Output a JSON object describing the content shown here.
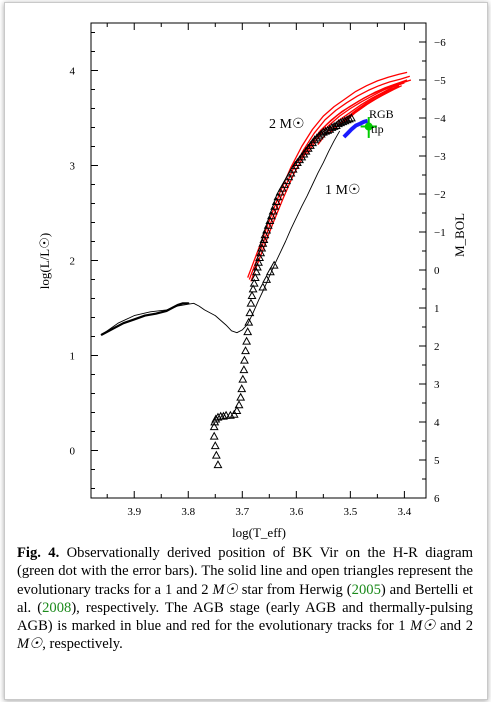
{
  "figure": {
    "caption_label": "Fig. 4.",
    "caption_text_1": "Observationally derived position of BK Vir on the H-R diagram (green dot with the error bars). The solid line and open triangles represent the evolutionary tracks for a 1 and 2 ",
    "caption_msun_1": "M☉",
    "caption_text_2": " star from Herwig (",
    "caption_ref_1": "2005",
    "caption_text_3": ") and Bertelli et al. (",
    "caption_ref_2": "2008",
    "caption_text_4": "), respectively. The AGB stage (early AGB and thermally-pulsing AGB) is marked in blue and red for the evolutionary tracks for 1 ",
    "caption_msun_2": "M☉",
    "caption_text_5": " and 2 ",
    "caption_msun_3": "M☉",
    "caption_text_6": ", respectively."
  },
  "chart_data": {
    "type": "scatter",
    "xlabel": "log(T_eff)",
    "ylabel_left": "log(L/L☉)",
    "ylabel_right": "M_BOL",
    "xlim": [
      3.98,
      3.36
    ],
    "ylim": [
      -0.5,
      4.5
    ],
    "right_ylim": [
      6,
      -6.5
    ],
    "x_ticks": [
      "3.9",
      "3.8",
      "3.7",
      "3.6",
      "3.5",
      "3.4"
    ],
    "x_tick_values": [
      3.9,
      3.8,
      3.7,
      3.6,
      3.5,
      3.4
    ],
    "y_ticks": [
      "0",
      "1",
      "2",
      "3",
      "4"
    ],
    "y_tick_values": [
      0,
      1,
      2,
      3,
      4
    ],
    "right_ticks": [
      "6",
      "5",
      "4",
      "3",
      "2",
      "1",
      "0",
      "−1",
      "−2",
      "−3",
      "−4",
      "−5",
      "−6"
    ],
    "right_tick_values": [
      6,
      5,
      4,
      3,
      2,
      1,
      0,
      -1,
      -2,
      -3,
      -4,
      -5,
      -6
    ],
    "annotations": {
      "two_msun": "2 M☉",
      "one_msun": "1 M☉",
      "rgb": "RGB",
      "tip": "tip"
    },
    "colors": {
      "track": "#000000",
      "agb_1msun": "#1a1aff",
      "agb_2msun": "#ff0000",
      "bkvir": "#00cc00"
    },
    "series": [
      {
        "style": "line-thin",
        "x": [
          3.96,
          3.93,
          3.9,
          3.87,
          3.84,
          3.82,
          3.8,
          3.79,
          3.78,
          3.77,
          3.75,
          3.73,
          3.72,
          3.71,
          3.7,
          3.69
        ],
        "y": [
          1.22,
          1.34,
          1.42,
          1.46,
          1.48,
          1.52,
          1.54,
          1.55,
          1.52,
          1.48,
          1.42,
          1.32,
          1.26,
          1.24,
          1.27,
          1.33
        ]
      },
      {
        "style": "line-thick",
        "x": [
          3.96,
          3.94,
          3.92,
          3.9,
          3.88,
          3.86,
          3.84,
          3.83,
          3.82,
          3.81,
          3.8
        ],
        "y": [
          1.22,
          1.28,
          1.34,
          1.38,
          1.42,
          1.44,
          1.47,
          1.5,
          1.53,
          1.55,
          1.55
        ]
      },
      {
        "style": "line-thin",
        "x": [
          3.69,
          3.68,
          3.67,
          3.66,
          3.65,
          3.64,
          3.63,
          3.62,
          3.61,
          3.6,
          3.59,
          3.58,
          3.57,
          3.56,
          3.55,
          3.54,
          3.53,
          3.52
        ],
        "y": [
          1.33,
          1.45,
          1.58,
          1.7,
          1.83,
          1.96,
          2.08,
          2.2,
          2.33,
          2.45,
          2.57,
          2.68,
          2.8,
          2.92,
          3.03,
          3.15,
          3.26,
          3.36
        ]
      },
      {
        "style": "triangles",
        "x": [
          3.745,
          3.748,
          3.75,
          3.752,
          3.752,
          3.751,
          3.749,
          3.745,
          3.74,
          3.735,
          3.73,
          3.722,
          3.715,
          3.71,
          3.706,
          3.703,
          3.701,
          3.699,
          3.697,
          3.696,
          3.694,
          3.692,
          3.69,
          3.688,
          3.686,
          3.684,
          3.682,
          3.68,
          3.678,
          3.676,
          3.674,
          3.672,
          3.67,
          3.668,
          3.666,
          3.664,
          3.662,
          3.66,
          3.658,
          3.655,
          3.652,
          3.649,
          3.646,
          3.643,
          3.64,
          3.637,
          3.634,
          3.63,
          3.626,
          3.622,
          3.618,
          3.614,
          3.61,
          3.606,
          3.602,
          3.598,
          3.594,
          3.59,
          3.586,
          3.582,
          3.578,
          3.574,
          3.57,
          3.566,
          3.562,
          3.558,
          3.554,
          3.55,
          3.546,
          3.542,
          3.538,
          3.534,
          3.53,
          3.526,
          3.522,
          3.518,
          3.514,
          3.51,
          3.506,
          3.502,
          3.498
        ],
        "y": [
          -0.15,
          -0.05,
          0.05,
          0.15,
          0.25,
          0.3,
          0.33,
          0.35,
          0.36,
          0.36,
          0.37,
          0.37,
          0.38,
          0.42,
          0.48,
          0.56,
          0.65,
          0.75,
          0.85,
          0.95,
          1.05,
          1.15,
          1.25,
          1.35,
          1.45,
          1.55,
          1.63,
          1.7,
          1.76,
          1.82,
          1.88,
          1.93,
          1.98,
          2.03,
          2.08,
          2.13,
          2.18,
          2.22,
          2.27,
          2.32,
          2.37,
          2.42,
          2.47,
          2.52,
          2.57,
          2.62,
          2.67,
          2.72,
          2.76,
          2.8,
          2.84,
          2.88,
          2.92,
          2.96,
          3.0,
          3.03,
          3.06,
          3.09,
          3.12,
          3.15,
          3.18,
          3.21,
          3.24,
          3.27,
          3.29,
          3.31,
          3.33,
          3.35,
          3.36,
          3.37,
          3.38,
          3.4,
          3.41,
          3.42,
          3.44,
          3.45,
          3.46,
          3.47,
          3.48,
          3.49,
          3.5
        ]
      },
      {
        "style": "triangles",
        "x": [
          3.662,
          3.655,
          3.648,
          3.641
        ],
        "y": [
          1.72,
          1.8,
          1.88,
          1.95
        ]
      }
    ],
    "agb_2msun_tracks": [
      {
        "x": [
          3.69,
          3.67,
          3.65,
          3.63,
          3.61,
          3.59,
          3.57,
          3.55,
          3.53,
          3.51,
          3.49,
          3.47,
          3.45,
          3.43,
          3.41,
          3.395
        ],
        "y": [
          1.82,
          2.12,
          2.42,
          2.72,
          2.98,
          3.2,
          3.38,
          3.52,
          3.62,
          3.7,
          3.78,
          3.84,
          3.89,
          3.93,
          3.96,
          3.98
        ]
      },
      {
        "x": [
          3.687,
          3.667,
          3.647,
          3.627,
          3.607,
          3.587,
          3.567,
          3.547,
          3.527,
          3.507,
          3.487,
          3.467,
          3.447,
          3.427,
          3.407,
          3.39
        ],
        "y": [
          1.8,
          2.1,
          2.4,
          2.69,
          2.95,
          3.16,
          3.34,
          3.48,
          3.58,
          3.66,
          3.73,
          3.79,
          3.84,
          3.88,
          3.91,
          3.94
        ]
      },
      {
        "x": [
          3.684,
          3.664,
          3.644,
          3.624,
          3.604,
          3.584,
          3.564,
          3.544,
          3.524,
          3.504,
          3.484,
          3.464,
          3.444,
          3.424,
          3.404,
          3.388
        ],
        "y": [
          1.78,
          2.08,
          2.38,
          2.66,
          2.92,
          3.12,
          3.29,
          3.43,
          3.53,
          3.61,
          3.68,
          3.74,
          3.79,
          3.83,
          3.87,
          3.9
        ]
      },
      {
        "x": [
          3.595,
          3.575,
          3.555,
          3.535,
          3.515,
          3.495,
          3.475,
          3.455,
          3.435,
          3.415,
          3.395
        ],
        "y": [
          3.05,
          3.22,
          3.37,
          3.48,
          3.57,
          3.64,
          3.71,
          3.77,
          3.82,
          3.86,
          3.9
        ]
      },
      {
        "x": [
          3.58,
          3.56,
          3.54,
          3.52,
          3.5,
          3.48,
          3.46,
          3.44,
          3.42,
          3.4
        ],
        "y": [
          3.12,
          3.29,
          3.42,
          3.52,
          3.6,
          3.67,
          3.73,
          3.79,
          3.84,
          3.88
        ]
      },
      {
        "x": [
          3.56,
          3.54,
          3.52,
          3.5,
          3.48,
          3.46,
          3.44,
          3.42,
          3.4
        ],
        "y": [
          3.22,
          3.37,
          3.48,
          3.56,
          3.64,
          3.71,
          3.77,
          3.83,
          3.87
        ]
      },
      {
        "x": [
          3.54,
          3.52,
          3.5,
          3.48,
          3.46,
          3.44,
          3.42,
          3.405
        ],
        "y": [
          3.33,
          3.44,
          3.53,
          3.61,
          3.68,
          3.74,
          3.8,
          3.84
        ]
      },
      {
        "x": [
          3.53,
          3.51,
          3.49,
          3.47,
          3.45,
          3.43,
          3.41
        ],
        "y": [
          3.38,
          3.49,
          3.58,
          3.66,
          3.73,
          3.79,
          3.84
        ]
      },
      {
        "x": [
          3.52,
          3.5,
          3.48,
          3.46,
          3.44,
          3.42
        ],
        "y": [
          3.42,
          3.52,
          3.6,
          3.68,
          3.75,
          3.81
        ]
      },
      {
        "x": [
          3.51,
          3.49,
          3.47,
          3.45,
          3.43,
          3.41
        ],
        "y": [
          3.46,
          3.56,
          3.64,
          3.71,
          3.78,
          3.84
        ]
      }
    ],
    "agb_1msun_track": {
      "x": [
        3.512,
        3.505,
        3.498,
        3.49,
        3.482,
        3.475,
        3.468
      ],
      "y": [
        3.3,
        3.34,
        3.38,
        3.42,
        3.44,
        3.46,
        3.47
      ]
    },
    "bkvir": {
      "x": 3.466,
      "y": 3.41,
      "x_err": 0.015,
      "y_err_low": 0.12,
      "y_err_high": 0.1
    }
  }
}
